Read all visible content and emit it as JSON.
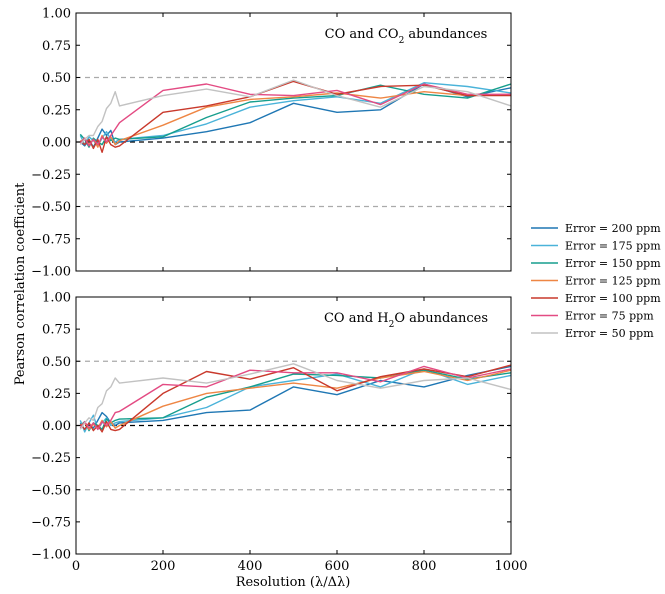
{
  "figure": {
    "ylabel": "Pearson correlation coefficient",
    "xlabel": "Resolution (λ/Δλ)"
  },
  "chart_data": [
    {
      "type": "line",
      "title_parts": [
        "CO and CO",
        "2",
        " abundances"
      ],
      "xlim": [
        0,
        1000
      ],
      "ylim": [
        -1.0,
        1.0
      ],
      "x_ticks": [
        "0",
        "200",
        "400",
        "600",
        "800",
        "1000"
      ],
      "y_ticks": [
        "−1.00",
        "−0.75",
        "−0.50",
        "−0.25",
        "0.00",
        "0.25",
        "0.50",
        "0.75",
        "1.00"
      ],
      "reference_lines": [
        {
          "y": 0.5,
          "style": "dashed",
          "color": "#aaaaaa"
        },
        {
          "y": -0.5,
          "style": "dashed",
          "color": "#aaaaaa"
        },
        {
          "y": 0.0,
          "style": "dashed",
          "color": "#000000"
        }
      ],
      "series": [
        {
          "name": "Error = 200 ppm",
          "color": "#1f77b4",
          "x": [
            10,
            20,
            30,
            40,
            50,
            60,
            70,
            80,
            90,
            100,
            200,
            300,
            400,
            500,
            600,
            700,
            800,
            900,
            1000
          ],
          "y": [
            0.0,
            -0.03,
            0.02,
            -0.04,
            0.03,
            0.1,
            0.05,
            0.09,
            -0.02,
            0.0,
            0.03,
            0.08,
            0.15,
            0.3,
            0.23,
            0.25,
            0.45,
            0.35,
            0.42
          ]
        },
        {
          "name": "Error = 175 ppm",
          "color": "#4ab3d9",
          "x": [
            10,
            20,
            30,
            40,
            50,
            60,
            70,
            80,
            90,
            100,
            200,
            300,
            400,
            500,
            600,
            700,
            800,
            900,
            1000
          ],
          "y": [
            0.05,
            -0.02,
            0.04,
            0.01,
            -0.03,
            0.03,
            0.08,
            0.02,
            0.0,
            0.02,
            0.05,
            0.14,
            0.27,
            0.32,
            0.35,
            0.3,
            0.46,
            0.43,
            0.38
          ]
        },
        {
          "name": "Error = 150 ppm",
          "color": "#169e8d",
          "x": [
            10,
            20,
            30,
            40,
            50,
            60,
            70,
            80,
            90,
            100,
            200,
            300,
            400,
            500,
            600,
            700,
            800,
            900,
            1000
          ],
          "y": [
            0.06,
            0.02,
            -0.04,
            0.03,
            0.0,
            -0.02,
            0.04,
            0.01,
            0.03,
            0.02,
            0.04,
            0.19,
            0.31,
            0.34,
            0.36,
            0.44,
            0.37,
            0.34,
            0.45
          ]
        },
        {
          "name": "Error = 125 ppm",
          "color": "#ee8644",
          "x": [
            10,
            20,
            30,
            40,
            50,
            60,
            70,
            80,
            90,
            100,
            200,
            300,
            400,
            500,
            600,
            700,
            800,
            900,
            1000
          ],
          "y": [
            0.0,
            0.03,
            -0.02,
            0.02,
            -0.04,
            0.05,
            -0.01,
            0.04,
            -0.02,
            0.01,
            0.13,
            0.27,
            0.33,
            0.35,
            0.38,
            0.34,
            0.39,
            0.36,
            0.37
          ]
        },
        {
          "name": "Error = 100 ppm",
          "color": "#c9392c",
          "x": [
            10,
            20,
            30,
            40,
            50,
            60,
            70,
            80,
            90,
            100,
            200,
            300,
            400,
            500,
            600,
            700,
            800,
            900,
            1000
          ],
          "y": [
            0.01,
            -0.02,
            0.02,
            -0.05,
            0.02,
            -0.08,
            0.04,
            -0.02,
            -0.04,
            -0.03,
            0.23,
            0.28,
            0.35,
            0.47,
            0.37,
            0.43,
            0.44,
            0.36,
            0.36
          ]
        },
        {
          "name": "Error = 75 ppm",
          "color": "#e34b83",
          "x": [
            10,
            20,
            30,
            40,
            50,
            60,
            70,
            80,
            90,
            100,
            200,
            300,
            400,
            500,
            600,
            700,
            800,
            900,
            1000
          ],
          "y": [
            -0.01,
            0.03,
            -0.03,
            0.02,
            -0.02,
            0.04,
            0.0,
            0.05,
            0.1,
            0.15,
            0.4,
            0.45,
            0.37,
            0.36,
            0.4,
            0.29,
            0.45,
            0.37,
            0.37
          ]
        },
        {
          "name": "Error = 50 ppm",
          "color": "#c2c2c2",
          "x": [
            10,
            20,
            30,
            40,
            50,
            60,
            70,
            80,
            90,
            100,
            200,
            300,
            400,
            500,
            600,
            700,
            800,
            900,
            1000
          ],
          "y": [
            -0.02,
            0.02,
            0.05,
            0.05,
            0.12,
            0.16,
            0.26,
            0.3,
            0.39,
            0.28,
            0.36,
            0.41,
            0.35,
            0.48,
            0.36,
            0.27,
            0.43,
            0.39,
            0.28
          ]
        }
      ]
    },
    {
      "type": "line",
      "title_parts": [
        "CO and H",
        "2",
        "O abundances"
      ],
      "xlim": [
        0,
        1000
      ],
      "ylim": [
        -1.0,
        1.0
      ],
      "x_ticks": [
        "0",
        "200",
        "400",
        "600",
        "800",
        "1000"
      ],
      "y_ticks": [
        "−1.00",
        "−0.75",
        "−0.50",
        "−0.25",
        "0.00",
        "0.25",
        "0.50",
        "0.75",
        "1.00"
      ],
      "reference_lines": [
        {
          "y": 0.5,
          "style": "dashed",
          "color": "#aaaaaa"
        },
        {
          "y": -0.5,
          "style": "dashed",
          "color": "#aaaaaa"
        },
        {
          "y": 0.0,
          "style": "dashed",
          "color": "#000000"
        }
      ],
      "series": [
        {
          "name": "Error = 200 ppm",
          "color": "#1f77b4",
          "x": [
            10,
            20,
            30,
            40,
            50,
            60,
            70,
            80,
            90,
            100,
            200,
            300,
            400,
            500,
            600,
            700,
            800,
            900,
            1000
          ],
          "y": [
            0.02,
            -0.03,
            0.01,
            -0.02,
            0.04,
            0.1,
            0.07,
            0.02,
            0.0,
            0.02,
            0.04,
            0.1,
            0.12,
            0.3,
            0.24,
            0.35,
            0.3,
            0.39,
            0.46
          ]
        },
        {
          "name": "Error = 175 ppm",
          "color": "#4ab3d9",
          "x": [
            10,
            20,
            30,
            40,
            50,
            60,
            70,
            80,
            90,
            100,
            200,
            300,
            400,
            500,
            600,
            700,
            800,
            900,
            1000
          ],
          "y": [
            0.04,
            -0.05,
            0.02,
            0.08,
            -0.03,
            0.02,
            0.06,
            0.0,
            0.02,
            0.03,
            0.06,
            0.14,
            0.3,
            0.35,
            0.4,
            0.3,
            0.44,
            0.32,
            0.39
          ]
        },
        {
          "name": "Error = 150 ppm",
          "color": "#169e8d",
          "x": [
            10,
            20,
            30,
            40,
            50,
            60,
            70,
            80,
            90,
            100,
            200,
            300,
            400,
            500,
            600,
            700,
            800,
            900,
            1000
          ],
          "y": [
            0.0,
            0.03,
            -0.04,
            0.02,
            0.0,
            -0.03,
            0.05,
            0.02,
            0.04,
            0.05,
            0.06,
            0.22,
            0.3,
            0.4,
            0.39,
            0.37,
            0.43,
            0.36,
            0.41
          ]
        },
        {
          "name": "Error = 125 ppm",
          "color": "#ee8644",
          "x": [
            10,
            20,
            30,
            40,
            50,
            60,
            70,
            80,
            90,
            100,
            200,
            300,
            400,
            500,
            600,
            700,
            800,
            900,
            1000
          ],
          "y": [
            0.0,
            0.02,
            -0.03,
            0.01,
            -0.02,
            0.04,
            -0.01,
            0.03,
            -0.02,
            0.0,
            0.15,
            0.25,
            0.29,
            0.33,
            0.29,
            0.37,
            0.42,
            0.35,
            0.43
          ]
        },
        {
          "name": "Error = 100 ppm",
          "color": "#c9392c",
          "x": [
            10,
            20,
            30,
            40,
            50,
            60,
            70,
            80,
            90,
            100,
            200,
            300,
            400,
            500,
            600,
            700,
            800,
            900,
            1000
          ],
          "y": [
            0.01,
            -0.03,
            0.02,
            -0.04,
            0.0,
            -0.05,
            0.03,
            -0.03,
            -0.04,
            -0.03,
            0.25,
            0.42,
            0.36,
            0.45,
            0.27,
            0.38,
            0.44,
            0.38,
            0.47
          ]
        },
        {
          "name": "Error = 75 ppm",
          "color": "#e34b83",
          "x": [
            10,
            20,
            30,
            40,
            50,
            60,
            70,
            80,
            90,
            100,
            200,
            300,
            400,
            500,
            600,
            700,
            800,
            900,
            1000
          ],
          "y": [
            -0.02,
            0.03,
            -0.02,
            0.02,
            -0.03,
            0.03,
            0.0,
            0.04,
            0.1,
            0.11,
            0.32,
            0.3,
            0.43,
            0.41,
            0.41,
            0.34,
            0.46,
            0.37,
            0.44
          ]
        },
        {
          "name": "Error = 50 ppm",
          "color": "#c2c2c2",
          "x": [
            10,
            20,
            30,
            40,
            50,
            60,
            70,
            80,
            90,
            100,
            200,
            300,
            400,
            500,
            600,
            700,
            800,
            900,
            1000
          ],
          "y": [
            -0.03,
            0.02,
            0.06,
            0.04,
            0.14,
            0.17,
            0.27,
            0.3,
            0.37,
            0.33,
            0.37,
            0.33,
            0.4,
            0.48,
            0.35,
            0.29,
            0.35,
            0.37,
            0.28
          ]
        }
      ]
    }
  ],
  "legend": {
    "placement": "right",
    "entries": [
      {
        "label": "Error = 200 ppm",
        "color": "#1f77b4"
      },
      {
        "label": "Error = 175 ppm",
        "color": "#4ab3d9"
      },
      {
        "label": "Error = 150 ppm",
        "color": "#169e8d"
      },
      {
        "label": "Error = 125 ppm",
        "color": "#ee8644"
      },
      {
        "label": "Error = 100 ppm",
        "color": "#c9392c"
      },
      {
        "label": "Error = 75 ppm",
        "color": "#e34b83"
      },
      {
        "label": "Error = 50 ppm",
        "color": "#c2c2c2"
      }
    ]
  }
}
